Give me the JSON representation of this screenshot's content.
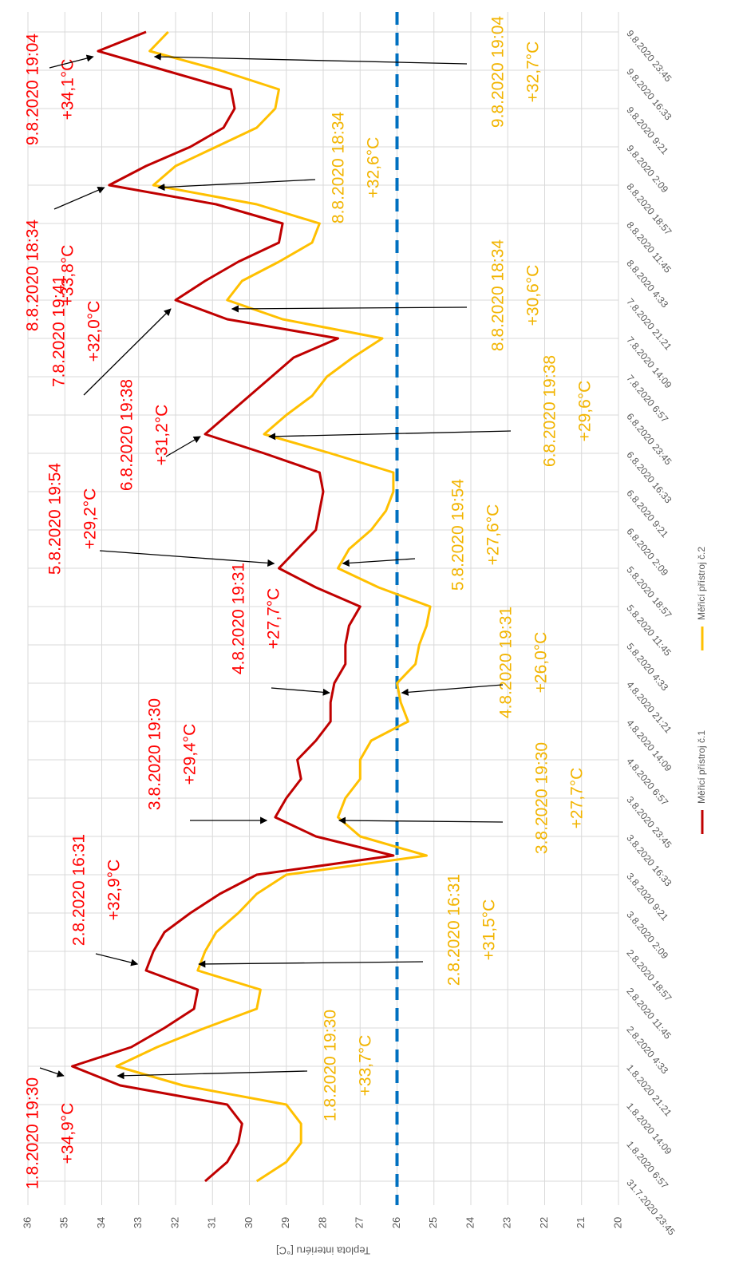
{
  "chart_data": {
    "type": "line",
    "ylabel": "Teplota interiéru [°C]",
    "categories": [
      "31.7.2020 23:45",
      null,
      "1.8.2020 6:57",
      null,
      "1.8.2020 14:09",
      null,
      "1.8.2020 21:21",
      null,
      "2.8.2020 4:33",
      null,
      "2.8.2020 11:45",
      null,
      "2.8.2020 18:57",
      null,
      "3.8.2020 2:09",
      null,
      "3.8.2020 9:21",
      null,
      "3.8.2020 16:33",
      null,
      "3.8.2020 23:45",
      null,
      "4.8.2020 6:57",
      null,
      "4.8.2020 14:09",
      null,
      "4.8.2020 21:21",
      null,
      "5.8.2020 4:33",
      null,
      "5.8.2020 11:45",
      null,
      "5.8.2020 18:57",
      null,
      "6.8.2020 2:09",
      null,
      "6.8.2020 9:21",
      null,
      "6.8.2020 16:33",
      null,
      "6.8.2020 23:45",
      null,
      "7.8.2020 6:57",
      null,
      "7.8.2020 14:09",
      null,
      "7.8.2020 21:21",
      null,
      "8.8.2020 4:33",
      null,
      "8.8.2020 11:45",
      null,
      "8.8.2020 18:57",
      null,
      "9.8.2020 2:09",
      null,
      "9.8.2020 9:21",
      null,
      "9.8.2020 16:33",
      null,
      "9.8.2020 23:45"
    ],
    "series": [
      {
        "name": "Měřicí přístroj č.1",
        "color": "#c00000",
        "values": [
          31.2,
          30.6,
          30.3,
          30.2,
          30.6,
          33.5,
          34.8,
          33.2,
          32.3,
          31.5,
          31.4,
          32.8,
          32.6,
          32.3,
          31.6,
          30.8,
          29.8,
          26.1,
          28.2,
          29.3,
          29.0,
          28.6,
          28.7,
          28.2,
          27.8,
          27.8,
          27.7,
          27.4,
          27.4,
          27.3,
          27.0,
          28.2,
          29.2,
          28.7,
          28.2,
          28.1,
          28.0,
          28.1,
          29.6,
          31.2,
          30.6,
          30.0,
          29.4,
          28.8,
          27.6,
          30.6,
          32.0,
          31.2,
          30.3,
          29.2,
          29.1,
          30.9,
          33.8,
          32.8,
          31.6,
          30.7,
          30.4,
          30.5,
          32.3,
          34.1,
          32.8
        ]
      },
      {
        "name": "Měřicí přístroj č.2",
        "color": "#ffc000",
        "values": [
          29.8,
          29.0,
          28.6,
          28.6,
          29.0,
          31.8,
          33.6,
          32.5,
          31.2,
          29.8,
          29.7,
          31.4,
          31.2,
          30.9,
          30.3,
          29.8,
          29.0,
          25.2,
          27.0,
          27.6,
          27.4,
          27.0,
          27.0,
          26.7,
          25.7,
          25.9,
          26.0,
          25.5,
          25.4,
          25.2,
          25.1,
          26.5,
          27.6,
          27.3,
          26.7,
          26.3,
          26.1,
          26.1,
          27.8,
          29.6,
          29.0,
          28.3,
          27.9,
          27.2,
          26.4,
          29.1,
          30.6,
          30.2,
          29.2,
          28.3,
          28.1,
          29.8,
          32.6,
          32.0,
          30.9,
          29.8,
          29.3,
          29.2,
          30.8,
          32.7,
          32.2
        ]
      }
    ],
    "ylim": [
      20,
      36
    ],
    "yticks": [
      20,
      21,
      22,
      23,
      24,
      25,
      26,
      27,
      28,
      29,
      30,
      31,
      32,
      33,
      34,
      35,
      36
    ],
    "grid": true,
    "threshold": {
      "value": 26,
      "color": "#0070c0"
    },
    "annotations": [
      {
        "label": "1.8.2020 19:30",
        "value": 34.9,
        "value_label": "+34,9°C",
        "color": "#ff0000"
      },
      {
        "label": "2.8.2020 16:31",
        "value": 32.9,
        "value_label": "+32,9°C",
        "color": "#ff0000"
      },
      {
        "label": "3.8.2020 19:30",
        "value": 29.4,
        "value_label": "+29,4°C",
        "color": "#ff0000"
      },
      {
        "label": "4.8.2020 19:31",
        "value": 27.7,
        "value_label": "+27,7°C",
        "color": "#ff0000"
      },
      {
        "label": "5.8.2020 19:54",
        "value": 29.2,
        "value_label": "+29,2°C",
        "color": "#ff0000"
      },
      {
        "label": "6.8.2020 19:38",
        "value": 31.2,
        "value_label": "+31,2°C",
        "color": "#ff0000"
      },
      {
        "label": "7.8.2020 19:41",
        "value": 32.0,
        "value_label": "+32,0°C",
        "color": "#ff0000"
      },
      {
        "label": "8.8.2020 18:34",
        "value": 33.8,
        "value_label": "+33,8°C",
        "color": "#ff0000"
      },
      {
        "label": "9.8.2020 19:04",
        "value": 34.1,
        "value_label": "+34,1°C",
        "color": "#ff0000"
      },
      {
        "label": "1.8.2020 19:30",
        "value": 33.7,
        "value_label": "+33,7°C",
        "color": "#f2b400"
      },
      {
        "label": "2.8.2020 16:31",
        "value": 31.5,
        "value_label": "+31,5°C",
        "color": "#f2b400"
      },
      {
        "label": "3.8.2020 19:30",
        "value": 27.7,
        "value_label": "+27,7°C",
        "color": "#f2b400"
      },
      {
        "label": "4.8.2020 19:31",
        "value": 26.0,
        "value_label": "+26,0°C",
        "color": "#f2b400"
      },
      {
        "label": "5.8.2020 19:54",
        "value": 27.6,
        "value_label": "+27,6°C",
        "color": "#f2b400"
      },
      {
        "label": "6.8.2020 19:38",
        "value": 29.6,
        "value_label": "+29,6°C",
        "color": "#f2b400"
      },
      {
        "label": "8.8.2020 18:34",
        "value": 30.6,
        "value_label": "+30,6°C",
        "color": "#f2b400"
      },
      {
        "label": "8.8.2020 18:34",
        "value": 32.6,
        "value_label": "+32,6°C",
        "color": "#f2b400"
      },
      {
        "label": "9.8.2020 19:04",
        "value": 32.7,
        "value_label": "+32,7°C",
        "color": "#f2b400"
      }
    ]
  }
}
